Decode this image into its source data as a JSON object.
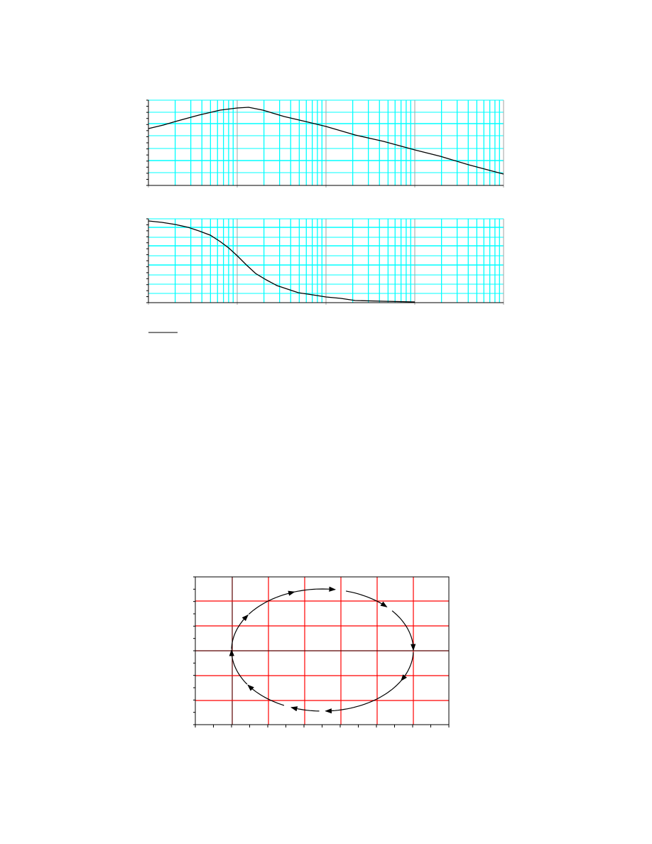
{
  "figures": [
    {
      "id": "magnitude-plot",
      "type": "line",
      "x_scale": "log",
      "x_decades": 4,
      "grid": true,
      "grid_color": "#00ffff",
      "major_grid_color": "#a0a0a0",
      "line_color": "#000000"
    },
    {
      "id": "phase-plot",
      "type": "line",
      "x_scale": "log",
      "x_decades": 4,
      "grid": true,
      "grid_color": "#00ffff",
      "major_grid_color": "#a0a0a0",
      "line_color": "#000000"
    },
    {
      "id": "ellipse-trajectory-plot",
      "type": "line",
      "grid": true,
      "grid_color": "#ff0000",
      "axis_line_color": "#5a0000",
      "line_color": "#000000"
    }
  ]
}
